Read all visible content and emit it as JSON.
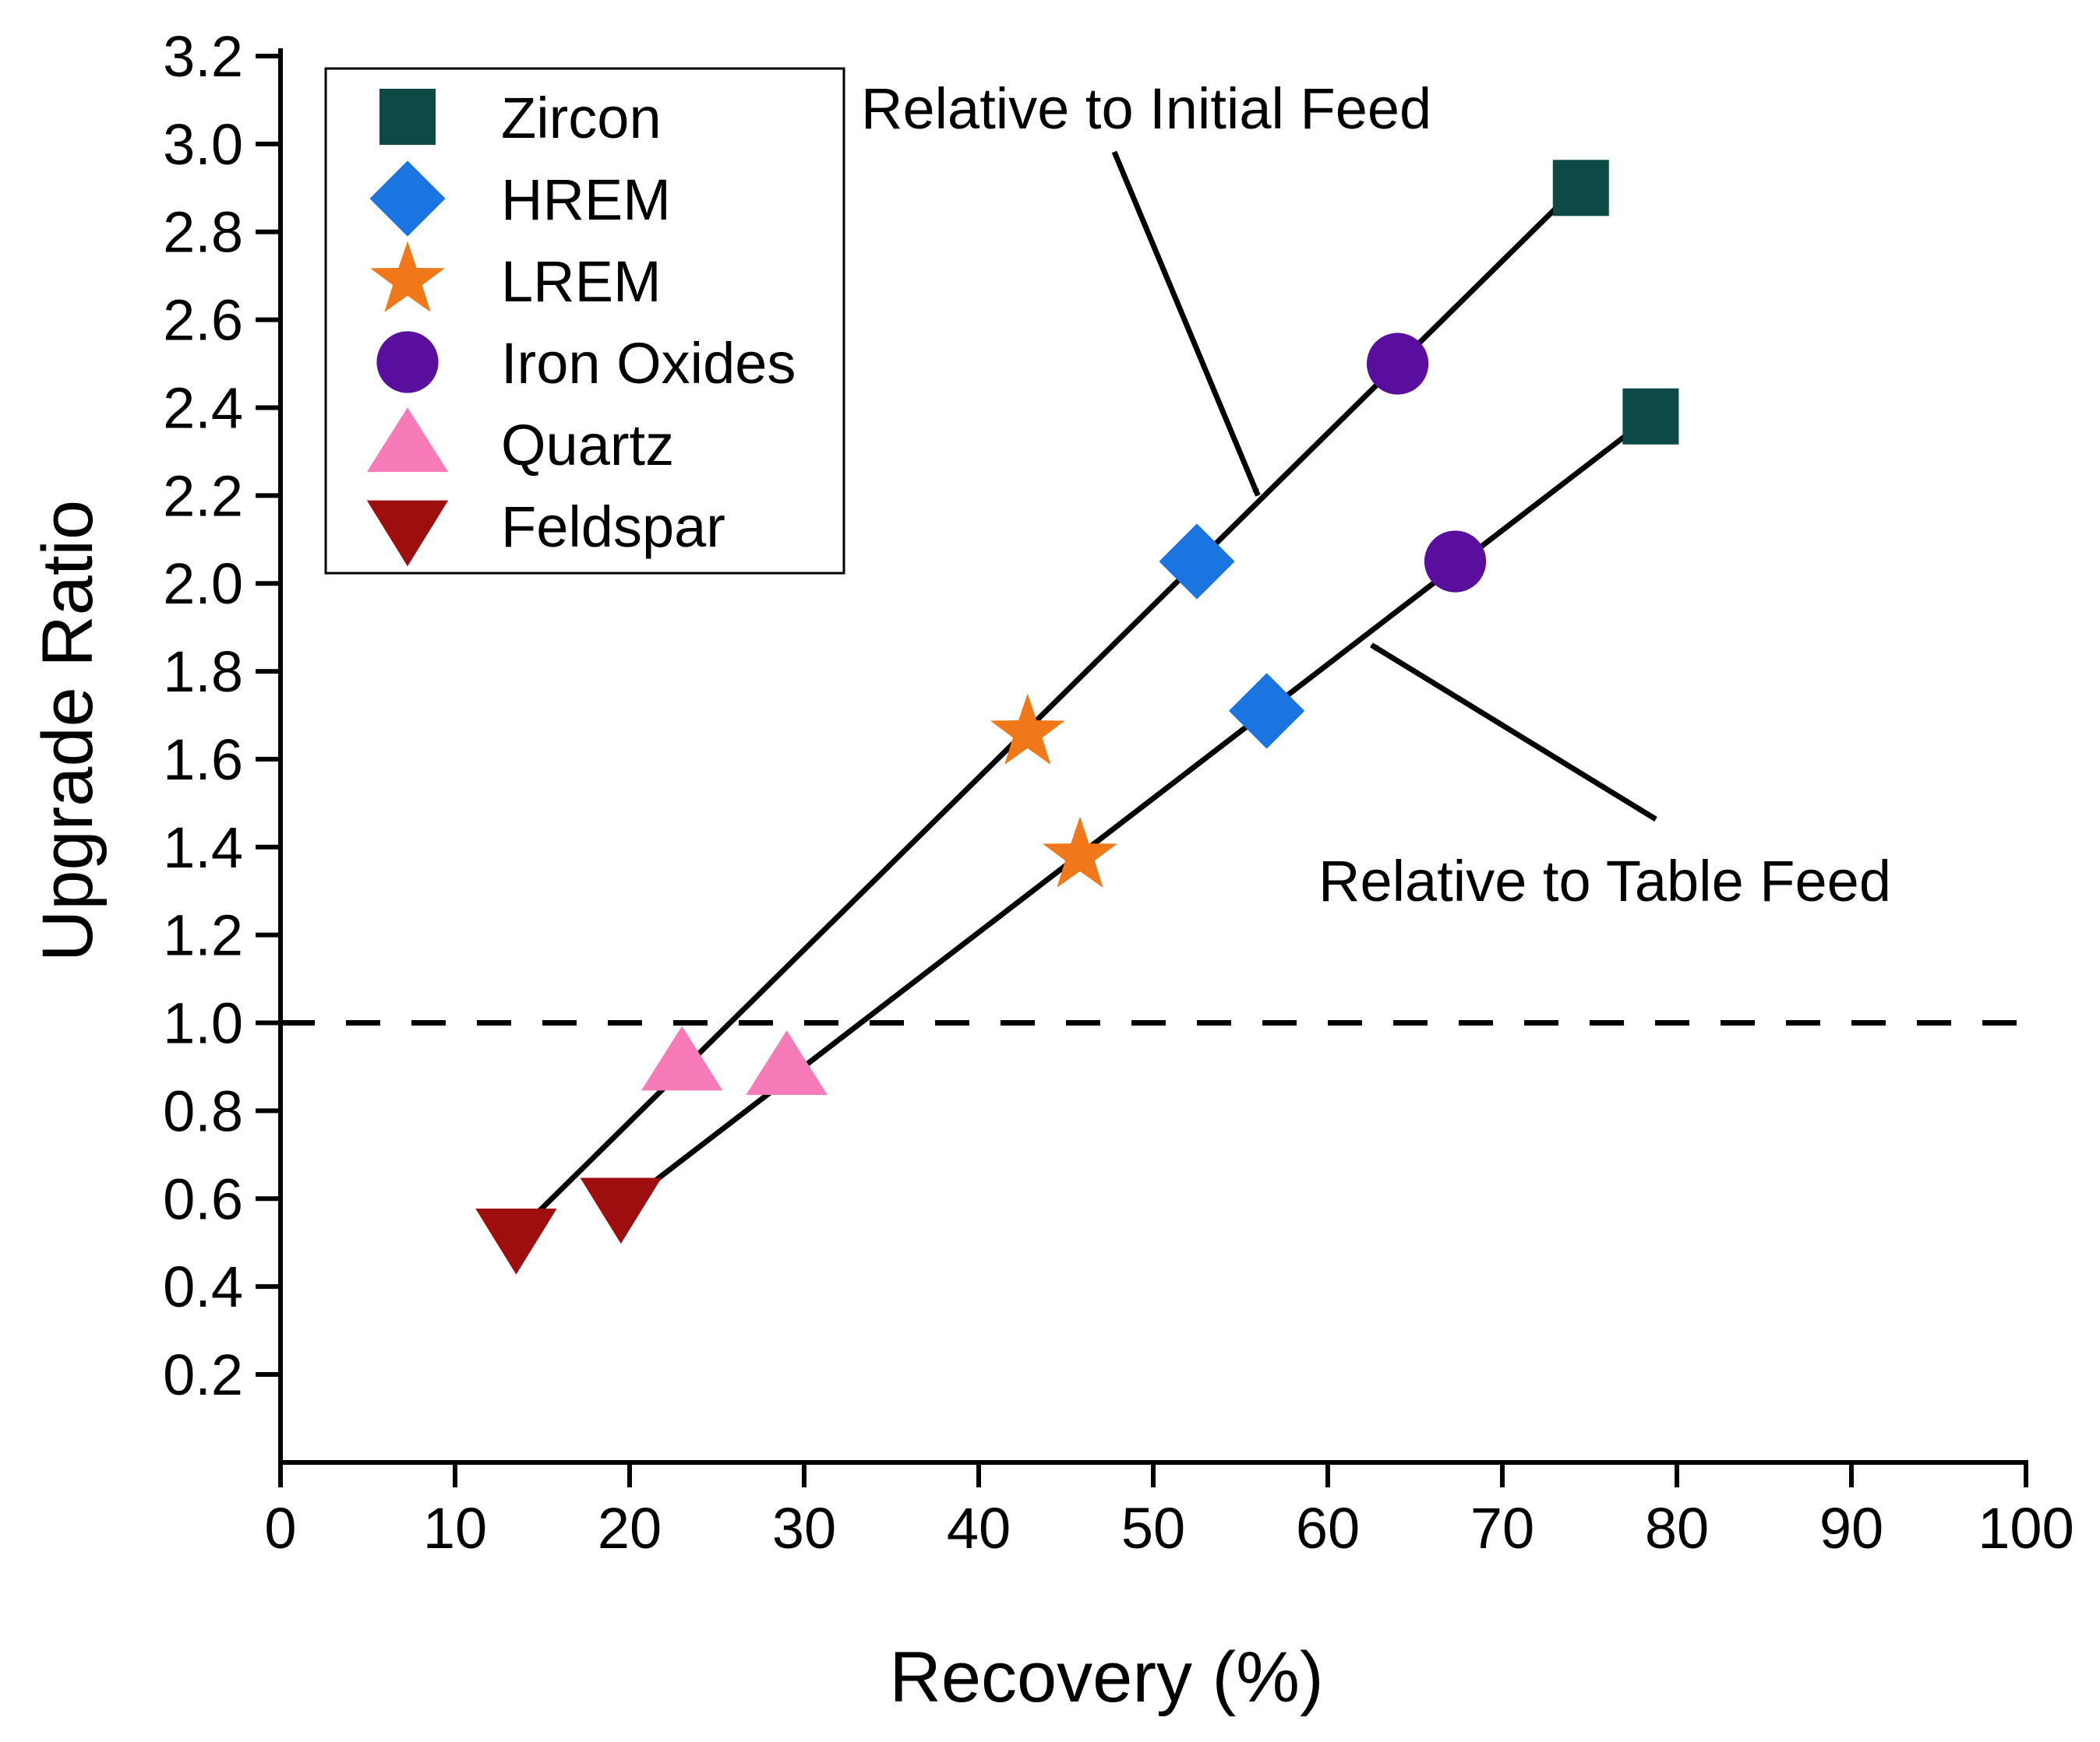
{
  "chart_data": {
    "type": "scatter",
    "xlabel": "Recovery (%)",
    "ylabel": "Upgrade Ratio",
    "xlim": [
      0,
      100
    ],
    "ylim": [
      0.2,
      3.2
    ],
    "x_ticks": [
      "0",
      "10",
      "20",
      "30",
      "40",
      "50",
      "60",
      "70",
      "80",
      "90",
      "100"
    ],
    "y_ticks": [
      "0.2",
      "0.4",
      "0.6",
      "0.8",
      "1.0",
      "1.2",
      "1.4",
      "1.6",
      "1.8",
      "2.0",
      "2.2",
      "2.4",
      "2.6",
      "2.8",
      "3.0",
      "3.2"
    ],
    "grid": false,
    "legend_position": "top-left",
    "series": [
      {
        "name": "Zircon",
        "marker": "square",
        "color": "#0d4a45",
        "points": [
          [
            74.5,
            2.9
          ],
          [
            78.5,
            2.38
          ]
        ]
      },
      {
        "name": "HREM",
        "marker": "diamond",
        "color": "#1a75e0",
        "points": [
          [
            52.5,
            2.05
          ],
          [
            56.5,
            1.71
          ]
        ]
      },
      {
        "name": "LREM",
        "marker": "star",
        "color": "#f07818",
        "points": [
          [
            42.8,
            1.66
          ],
          [
            45.8,
            1.38
          ]
        ]
      },
      {
        "name": "Iron Oxides",
        "marker": "circle",
        "color": "#5a0e9e",
        "points": [
          [
            64.0,
            2.5
          ],
          [
            67.3,
            2.05
          ]
        ]
      },
      {
        "name": "Quartz",
        "marker": "triangle-up",
        "color": "#f77bb8",
        "points": [
          [
            23.0,
            0.91
          ],
          [
            29.0,
            0.9
          ]
        ]
      },
      {
        "name": "Feldspar",
        "marker": "triangle-down",
        "color": "#9e0e0e",
        "points": [
          [
            13.5,
            0.52
          ],
          [
            19.5,
            0.59
          ]
        ]
      }
    ],
    "fit_lines": [
      {
        "label": "Relative to Initial Feed",
        "from": [
          13.5,
          0.52
        ],
        "to": [
          74.5,
          2.91
        ]
      },
      {
        "label": "Relative to Table Feed",
        "from": [
          19.8,
          0.59
        ],
        "to": [
          78.5,
          2.38
        ]
      }
    ],
    "reference_line": {
      "y": 1.0,
      "style": "dashed"
    },
    "annotations": [
      {
        "text": "Relative to Initial Feed",
        "arrow_to": [
          56.0,
          2.2
        ]
      },
      {
        "text": "Relative to Table Feed",
        "arrow_to": [
          62.5,
          1.86
        ]
      }
    ]
  }
}
